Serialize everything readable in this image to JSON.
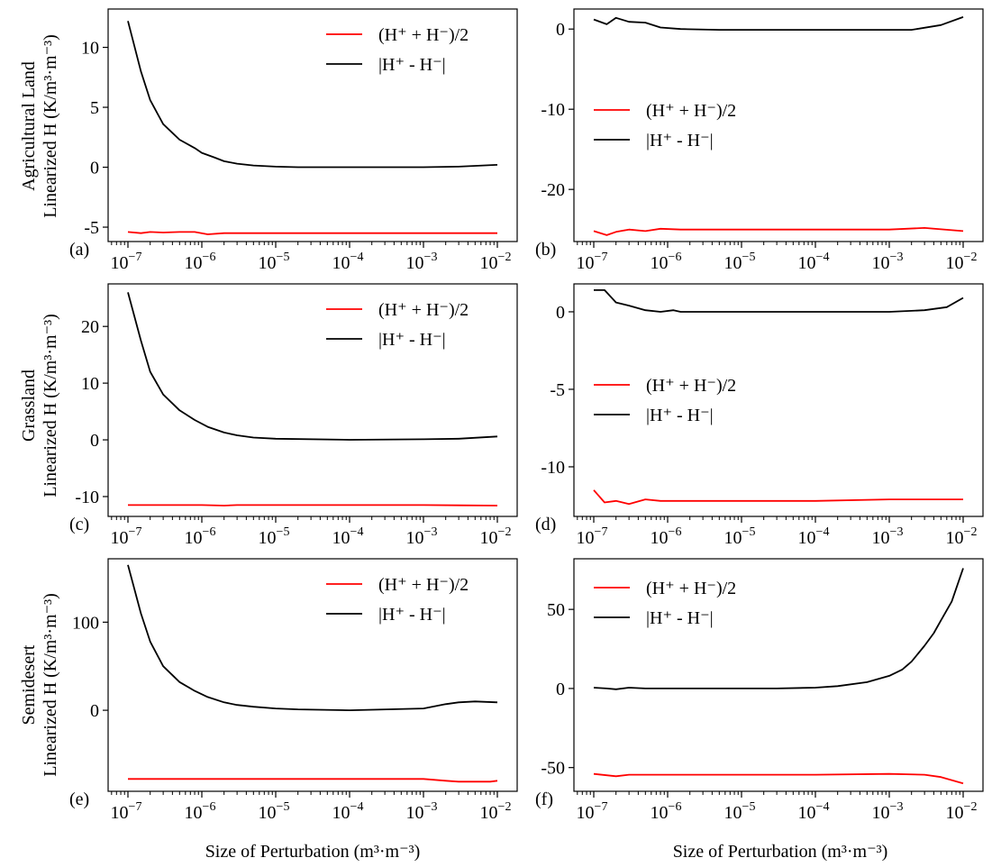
{
  "figure": {
    "xlabel": "Size of Perturbation (m³·m⁻³)",
    "row_labels": [
      [
        "Agricultural Land",
        "Linearized H (K/m³·m⁻³)"
      ],
      [
        "Grassland",
        "Linearized H (K/m³·m⁻³)"
      ],
      [
        "Semidesert",
        "Linearized H (K/m³·m⁻³)"
      ]
    ],
    "colors": {
      "mean": "#ff0000",
      "diff": "#000000"
    },
    "legend": {
      "mean_label": "(H⁺ + H⁻)/2",
      "diff_label": "|H⁺ - H⁻|"
    }
  },
  "chart_data": [
    {
      "type": "line",
      "panel": "(a)",
      "xscale": "log",
      "xlim": [
        1e-07,
        0.01
      ],
      "ylim": [
        -6.2,
        13.2
      ],
      "yticks": [
        -5,
        0,
        5,
        10
      ],
      "xticklabels": [
        "10⁻⁷",
        "10⁻⁶",
        "10⁻⁵",
        "10⁻⁴",
        "10⁻³",
        "10⁻²"
      ],
      "legend_position": "top-right",
      "series": [
        {
          "name": "(H⁺ + H⁻)/2",
          "color": "#ff0000",
          "x": [
            1e-07,
            1.5e-07,
            2e-07,
            3e-07,
            5e-07,
            8e-07,
            1.2e-06,
            2e-06,
            5e-06,
            1e-05,
            0.0001,
            0.001,
            0.01
          ],
          "y": [
            -5.4,
            -5.5,
            -5.4,
            -5.45,
            -5.4,
            -5.4,
            -5.6,
            -5.5,
            -5.5,
            -5.5,
            -5.5,
            -5.5,
            -5.5
          ]
        },
        {
          "name": "|H⁺ - H⁻|",
          "color": "#000000",
          "x": [
            1e-07,
            1.5e-07,
            2e-07,
            3e-07,
            5e-07,
            8e-07,
            1e-06,
            1.5e-06,
            2e-06,
            3e-06,
            5e-06,
            1e-05,
            2e-05,
            0.0001,
            0.001,
            0.003,
            0.01
          ],
          "y": [
            12.2,
            8.0,
            5.6,
            3.6,
            2.3,
            1.6,
            1.2,
            0.8,
            0.5,
            0.3,
            0.15,
            0.05,
            0.0,
            0.0,
            0.0,
            0.05,
            0.2
          ]
        }
      ]
    },
    {
      "type": "line",
      "panel": "(b)",
      "xscale": "log",
      "xlim": [
        1e-07,
        0.01
      ],
      "ylim": [
        -26.5,
        2.5
      ],
      "yticks": [
        -20,
        -10,
        0
      ],
      "xticklabels": [
        "10⁻⁷",
        "10⁻⁶",
        "10⁻⁵",
        "10⁻⁴",
        "10⁻³",
        "10⁻²"
      ],
      "legend_position": "center-left",
      "series": [
        {
          "name": "(H⁺ + H⁻)/2",
          "color": "#ff0000",
          "x": [
            1e-07,
            1.5e-07,
            2e-07,
            3e-07,
            5e-07,
            8e-07,
            1.5e-06,
            1e-05,
            0.0001,
            0.001,
            0.003,
            0.01
          ],
          "y": [
            -25.2,
            -25.7,
            -25.3,
            -25.0,
            -25.2,
            -24.9,
            -25.0,
            -25.0,
            -25.0,
            -25.0,
            -24.8,
            -25.2
          ]
        },
        {
          "name": "|H⁺ - H⁻|",
          "color": "#000000",
          "x": [
            1e-07,
            1.5e-07,
            2e-07,
            3e-07,
            5e-07,
            8e-07,
            1.5e-06,
            5e-06,
            1e-05,
            0.0001,
            0.001,
            0.002,
            0.005,
            0.01
          ],
          "y": [
            1.2,
            0.6,
            1.4,
            0.9,
            0.8,
            0.2,
            0.0,
            -0.1,
            -0.1,
            -0.1,
            -0.1,
            -0.1,
            0.5,
            1.5
          ]
        }
      ]
    },
    {
      "type": "line",
      "panel": "(c)",
      "xscale": "log",
      "xlim": [
        1e-07,
        0.01
      ],
      "ylim": [
        -13.5,
        27.5
      ],
      "yticks": [
        -10,
        0,
        10,
        20
      ],
      "xticklabels": [
        "10⁻⁷",
        "10⁻⁶",
        "10⁻⁵",
        "10⁻⁴",
        "10⁻³",
        "10⁻²"
      ],
      "legend_position": "top-right",
      "series": [
        {
          "name": "(H⁺ + H⁻)/2",
          "color": "#ff0000",
          "x": [
            1e-07,
            1e-06,
            2e-06,
            3e-06,
            1e-05,
            0.0001,
            0.001,
            0.01
          ],
          "y": [
            -11.5,
            -11.5,
            -11.6,
            -11.5,
            -11.5,
            -11.5,
            -11.5,
            -11.6
          ]
        },
        {
          "name": "|H⁺ - H⁻|",
          "color": "#000000",
          "x": [
            1e-07,
            1.5e-07,
            2e-07,
            3e-07,
            5e-07,
            8e-07,
            1.2e-06,
            2e-06,
            3e-06,
            5e-06,
            1e-05,
            0.0001,
            0.001,
            0.003,
            0.01
          ],
          "y": [
            26.0,
            17.5,
            12.0,
            8.0,
            5.2,
            3.5,
            2.3,
            1.3,
            0.8,
            0.4,
            0.2,
            0.0,
            0.1,
            0.2,
            0.6
          ]
        }
      ]
    },
    {
      "type": "line",
      "panel": "(d)",
      "xscale": "log",
      "xlim": [
        1e-07,
        0.01
      ],
      "ylim": [
        -13.2,
        1.8
      ],
      "yticks": [
        -10,
        -5,
        0
      ],
      "xticklabels": [
        "10⁻⁷",
        "10⁻⁶",
        "10⁻⁵",
        "10⁻⁴",
        "10⁻³",
        "10⁻²"
      ],
      "legend_position": "center-left",
      "series": [
        {
          "name": "(H⁺ + H⁻)/2",
          "color": "#ff0000",
          "x": [
            1e-07,
            1.4e-07,
            2e-07,
            3e-07,
            5e-07,
            8e-07,
            1.2e-06,
            5e-06,
            1e-05,
            0.0001,
            0.001,
            0.01
          ],
          "y": [
            -11.5,
            -12.3,
            -12.2,
            -12.4,
            -12.1,
            -12.2,
            -12.2,
            -12.2,
            -12.2,
            -12.2,
            -12.1,
            -12.1
          ]
        },
        {
          "name": "|H⁺ - H⁻|",
          "color": "#000000",
          "x": [
            1e-07,
            1.4e-07,
            2e-07,
            3e-07,
            5e-07,
            8e-07,
            1.2e-06,
            1.5e-06,
            5e-06,
            1e-05,
            0.0001,
            0.001,
            0.003,
            0.006,
            0.01
          ],
          "y": [
            1.4,
            1.4,
            0.6,
            0.4,
            0.1,
            0.0,
            0.1,
            0.0,
            0.0,
            0.0,
            0.0,
            0.0,
            0.1,
            0.3,
            0.9
          ]
        }
      ]
    },
    {
      "type": "line",
      "panel": "(e)",
      "xscale": "log",
      "xlim": [
        1e-07,
        0.01
      ],
      "ylim": [
        -92,
        172
      ],
      "yticks": [
        0,
        100
      ],
      "xticklabels": [
        "10⁻⁷",
        "10⁻⁶",
        "10⁻⁵",
        "10⁻⁴",
        "10⁻³",
        "10⁻²"
      ],
      "legend_position": "top-right",
      "series": [
        {
          "name": "(H⁺ + H⁻)/2",
          "color": "#ff0000",
          "x": [
            1e-07,
            1e-06,
            1e-05,
            0.0001,
            0.001,
            0.002,
            0.003,
            0.008,
            0.01
          ],
          "y": [
            -78,
            -78,
            -78,
            -78,
            -78,
            -80,
            -81,
            -81,
            -80
          ]
        },
        {
          "name": "|H⁺ - H⁻|",
          "color": "#000000",
          "x": [
            1e-07,
            1.5e-07,
            2e-07,
            3e-07,
            5e-07,
            8e-07,
            1.2e-06,
            2e-06,
            3e-06,
            5e-06,
            1e-05,
            2e-05,
            0.0001,
            0.001,
            0.002,
            0.003,
            0.005,
            0.01
          ],
          "y": [
            165,
            110,
            78,
            50,
            32,
            22,
            15,
            9,
            6,
            4,
            2,
            1,
            0,
            2,
            7,
            9,
            10,
            9
          ]
        }
      ]
    },
    {
      "type": "line",
      "panel": "(f)",
      "xscale": "log",
      "xlim": [
        1e-07,
        0.01
      ],
      "ylim": [
        -65,
        82
      ],
      "yticks": [
        -50,
        0,
        50
      ],
      "xticklabels": [
        "10⁻⁷",
        "10⁻⁶",
        "10⁻⁵",
        "10⁻⁴",
        "10⁻³",
        "10⁻²"
      ],
      "legend_position": "top-left",
      "series": [
        {
          "name": "(H⁺ + H⁻)/2",
          "color": "#ff0000",
          "x": [
            1e-07,
            2e-07,
            3e-07,
            1e-06,
            1e-05,
            0.0001,
            0.001,
            0.003,
            0.005,
            0.01
          ],
          "y": [
            -54,
            -55.5,
            -54.5,
            -54.5,
            -54.5,
            -54.5,
            -54,
            -54.5,
            -56,
            -60
          ]
        },
        {
          "name": "|H⁺ - H⁻|",
          "color": "#000000",
          "x": [
            1e-07,
            1.5e-07,
            2e-07,
            3e-07,
            5e-07,
            1e-06,
            1e-05,
            3e-05,
            0.0001,
            0.0002,
            0.0005,
            0.001,
            0.0015,
            0.002,
            0.003,
            0.004,
            0.005,
            0.007,
            0.01
          ],
          "y": [
            0.5,
            0,
            -0.5,
            0.5,
            0,
            0,
            0,
            0,
            0.5,
            1.5,
            4,
            8,
            12,
            17,
            27,
            35,
            43,
            55,
            76
          ]
        }
      ]
    }
  ]
}
